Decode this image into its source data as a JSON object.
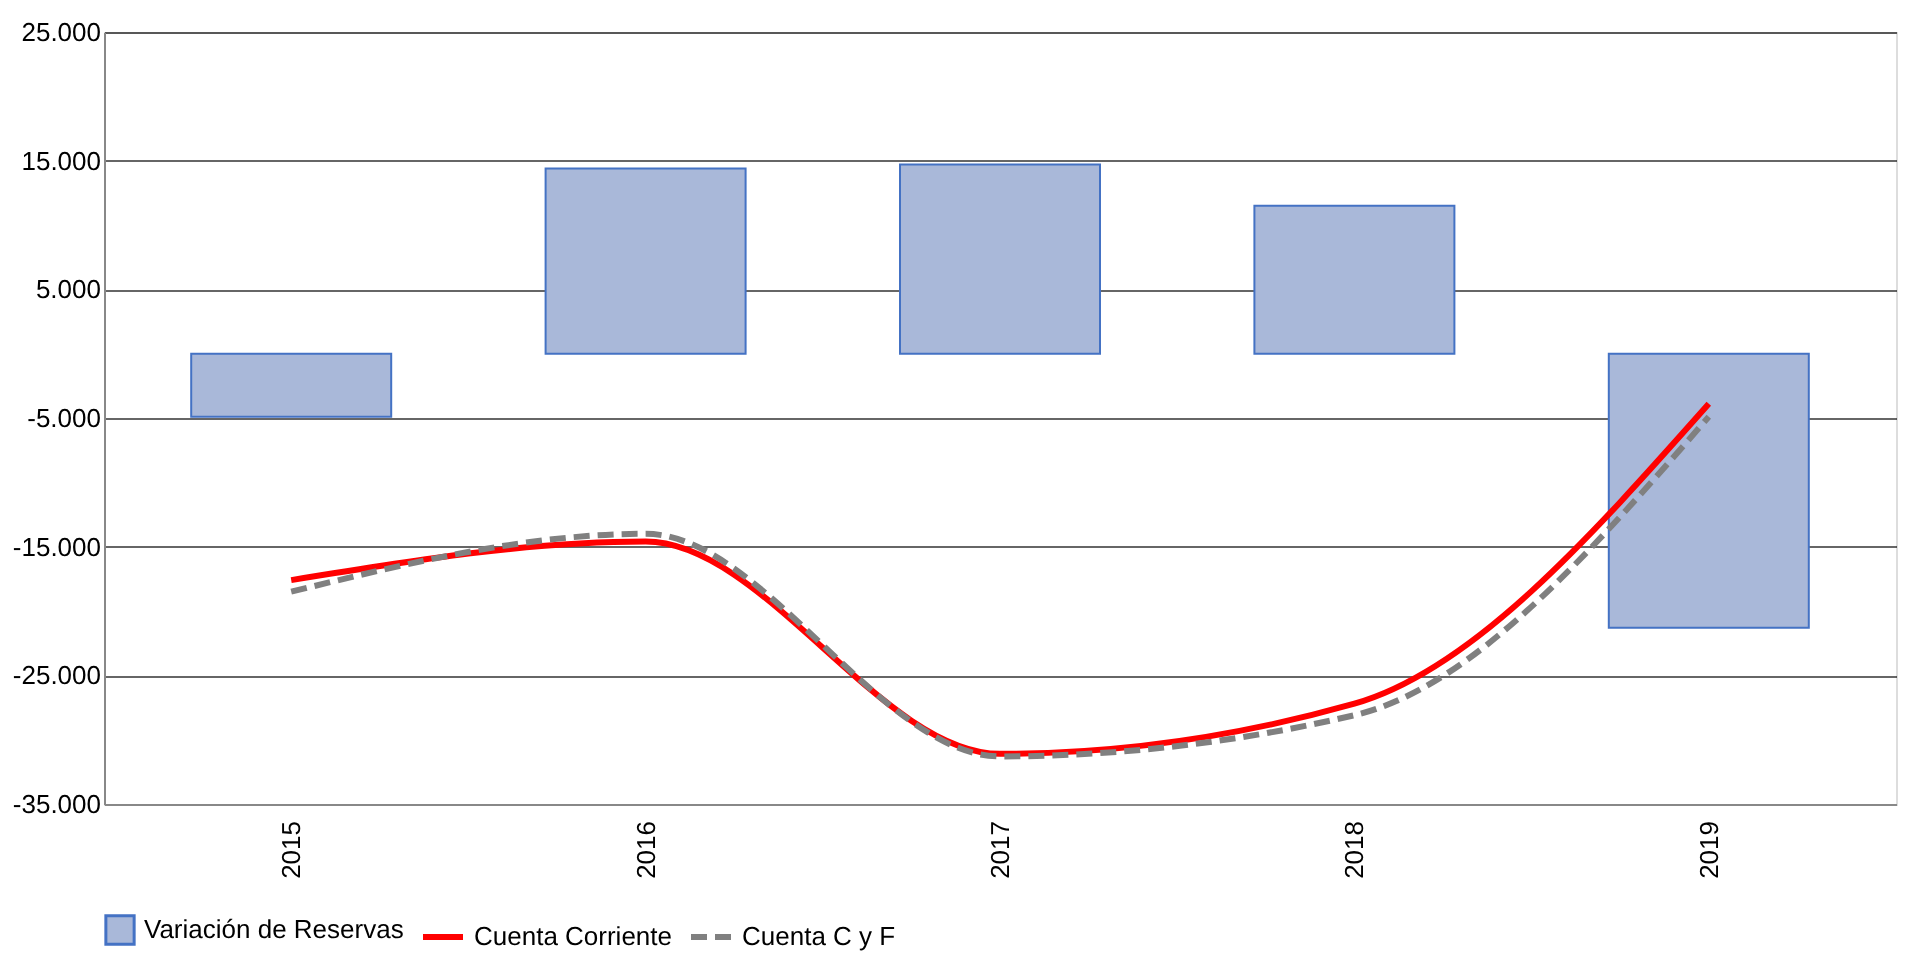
{
  "chart_data": {
    "type": "bar",
    "categories": [
      "2015",
      "2016",
      "2017",
      "2018",
      "2019"
    ],
    "series": [
      {
        "name": "Variación de Reservas",
        "color": "#a9b8d9",
        "values": [
          -4900,
          14400,
          14700,
          11500,
          -21300
        ]
      },
      {
        "name": "Cuenta Corriente",
        "type": "line",
        "color": "#ff0000",
        "line_style": "solid",
        "values": [
          -17600,
          -14600,
          -31100,
          -27200,
          -3900
        ]
      },
      {
        "name": "Cuenta C y F",
        "type": "line",
        "color": "#808080",
        "line_style": "dashed",
        "values": [
          -18500,
          -14000,
          -31300,
          -28100,
          -4900
        ]
      }
    ],
    "ylim": [
      -35000,
      25000
    ],
    "yticks": [
      {
        "value": -35000,
        "label": "-35.000"
      },
      {
        "value": -25000,
        "label": "-25.000"
      },
      {
        "value": -15000,
        "label": "-15.000"
      },
      {
        "value": -5000,
        "label": "-5.000"
      },
      {
        "value": 5000,
        "label": "5.000"
      },
      {
        "value": 15000,
        "label": "15.000"
      },
      {
        "value": 25000,
        "label": "25.000"
      }
    ],
    "grid": "y",
    "legend": "bottom",
    "marker": "none"
  }
}
